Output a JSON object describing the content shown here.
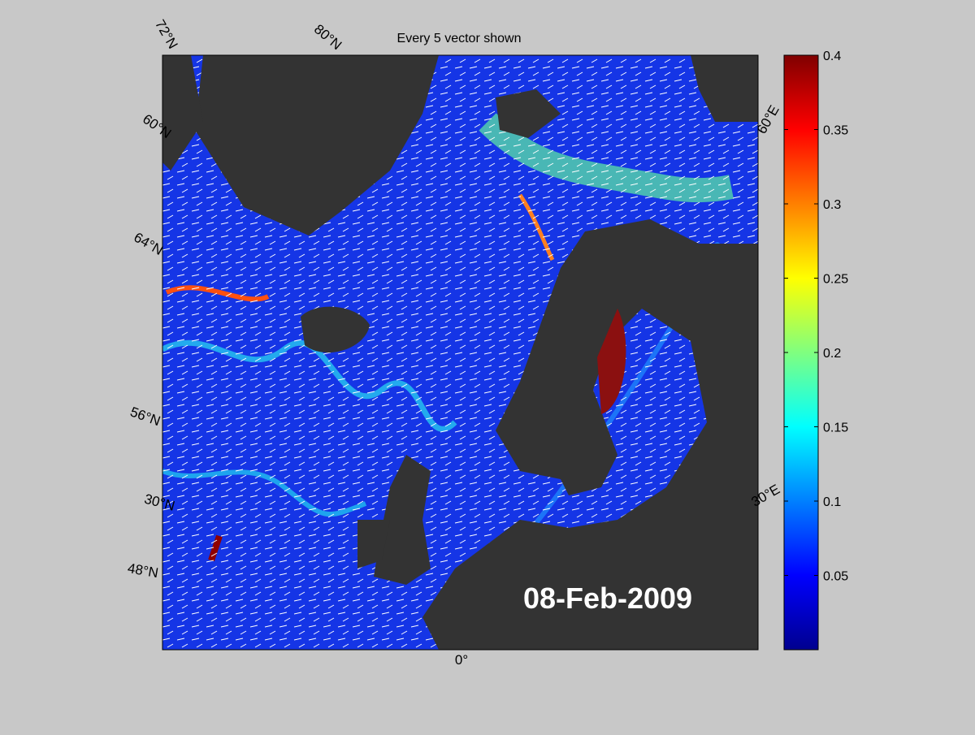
{
  "title": "Every 5 vector shown",
  "date": "08-Feb-2009",
  "map_labels": {
    "lat_72": "72°N",
    "lat_80": "80°N",
    "lat_60": "60°N",
    "lat_64": "64°N",
    "lat_56": "56°N",
    "lat_30": "30°N",
    "lat_48": "48°N",
    "lon_60e": "60°E",
    "lon_30e": "30°E",
    "lon_0": "0°"
  },
  "colorbar": {
    "lim": [
      0,
      0.4
    ],
    "ticks": [
      0.05,
      0.1,
      0.15,
      0.2,
      0.25,
      0.3,
      0.35,
      0.4
    ]
  }
}
